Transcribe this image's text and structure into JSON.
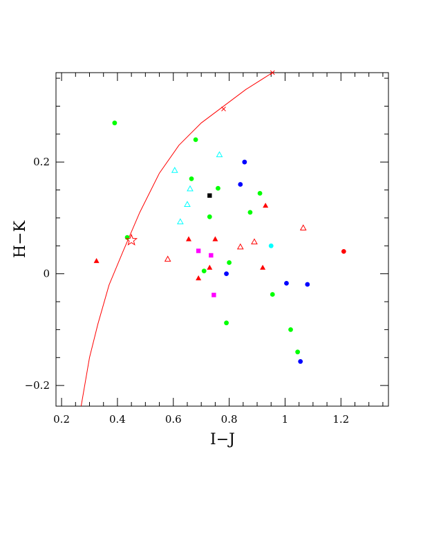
{
  "chart_data": {
    "type": "scatter",
    "title": "",
    "xlabel": "I−J",
    "ylabel": "H−K",
    "xlim": [
      0.18,
      1.37
    ],
    "ylim": [
      -0.237,
      0.36
    ],
    "x_ticks_major": [
      0.2,
      0.4,
      0.6,
      0.8,
      1.0,
      1.2
    ],
    "x_tick_labels": [
      "0.2",
      "0.4",
      "0.6",
      "0.8",
      "1",
      "1.2"
    ],
    "y_ticks_major": [
      -0.2,
      0,
      0.2
    ],
    "y_tick_labels": [
      "−0.2",
      "0",
      "0.2"
    ],
    "grid": false,
    "legend": "none",
    "curve": {
      "color": "#ff0000",
      "x": [
        0.27,
        0.3,
        0.33,
        0.37,
        0.42,
        0.48,
        0.55,
        0.62,
        0.7,
        0.78,
        0.86,
        0.955
      ],
      "y": [
        -0.237,
        -0.15,
        -0.09,
        -0.02,
        0.04,
        0.11,
        0.18,
        0.23,
        0.27,
        0.3,
        0.33,
        0.36
      ],
      "cross_markers": [
        {
          "x": 0.78,
          "y": 0.295
        },
        {
          "x": 0.955,
          "y": 0.36
        }
      ]
    },
    "series": [
      {
        "marker": "circle",
        "color": "#00ff00",
        "points": [
          {
            "x": 0.39,
            "y": 0.27
          },
          {
            "x": 0.68,
            "y": 0.24
          },
          {
            "x": 0.665,
            "y": 0.17
          },
          {
            "x": 0.76,
            "y": 0.153
          },
          {
            "x": 0.91,
            "y": 0.144
          },
          {
            "x": 0.875,
            "y": 0.11
          },
          {
            "x": 0.73,
            "y": 0.102
          },
          {
            "x": 0.435,
            "y": 0.065
          },
          {
            "x": 0.8,
            "y": 0.02
          },
          {
            "x": 0.71,
            "y": 0.005
          },
          {
            "x": 0.955,
            "y": -0.037
          },
          {
            "x": 0.79,
            "y": -0.088
          },
          {
            "x": 1.02,
            "y": -0.1
          },
          {
            "x": 1.045,
            "y": -0.14
          }
        ]
      },
      {
        "marker": "circle",
        "color": "#0000ff",
        "points": [
          {
            "x": 0.855,
            "y": 0.2
          },
          {
            "x": 0.84,
            "y": 0.16
          },
          {
            "x": 0.79,
            "y": 0.0
          },
          {
            "x": 1.005,
            "y": -0.017
          },
          {
            "x": 1.08,
            "y": -0.019
          },
          {
            "x": 1.055,
            "y": -0.157
          }
        ]
      },
      {
        "marker": "circle",
        "color": "#00ffff",
        "points": [
          {
            "x": 0.95,
            "y": 0.05
          }
        ]
      },
      {
        "marker": "circle",
        "color": "#ff0000",
        "points": [
          {
            "x": 1.21,
            "y": 0.04
          }
        ]
      },
      {
        "marker": "square",
        "color": "#000000",
        "points": [
          {
            "x": 0.73,
            "y": 0.14
          }
        ]
      },
      {
        "marker": "square",
        "color": "#ff00ff",
        "points": [
          {
            "x": 0.69,
            "y": 0.041
          },
          {
            "x": 0.735,
            "y": 0.033
          },
          {
            "x": 0.745,
            "y": -0.038
          }
        ]
      },
      {
        "marker": "triangle-filled",
        "color": "#ff0000",
        "points": [
          {
            "x": 0.325,
            "y": 0.023
          },
          {
            "x": 0.655,
            "y": 0.062
          },
          {
            "x": 0.75,
            "y": 0.062
          },
          {
            "x": 0.93,
            "y": 0.122
          },
          {
            "x": 0.73,
            "y": 0.011
          },
          {
            "x": 0.69,
            "y": -0.008
          },
          {
            "x": 0.92,
            "y": 0.011
          }
        ]
      },
      {
        "marker": "triangle-open",
        "color": "#ff0000",
        "points": [
          {
            "x": 0.58,
            "y": 0.026
          },
          {
            "x": 0.84,
            "y": 0.048
          },
          {
            "x": 0.89,
            "y": 0.057
          },
          {
            "x": 1.065,
            "y": 0.082
          }
        ]
      },
      {
        "marker": "triangle-open",
        "color": "#00ffff",
        "points": [
          {
            "x": 0.765,
            "y": 0.213
          },
          {
            "x": 0.605,
            "y": 0.185
          },
          {
            "x": 0.66,
            "y": 0.152
          },
          {
            "x": 0.65,
            "y": 0.124
          },
          {
            "x": 0.625,
            "y": 0.093
          }
        ]
      },
      {
        "marker": "star-open",
        "color": "#ff0000",
        "points": [
          {
            "x": 0.45,
            "y": 0.06
          }
        ]
      }
    ]
  }
}
